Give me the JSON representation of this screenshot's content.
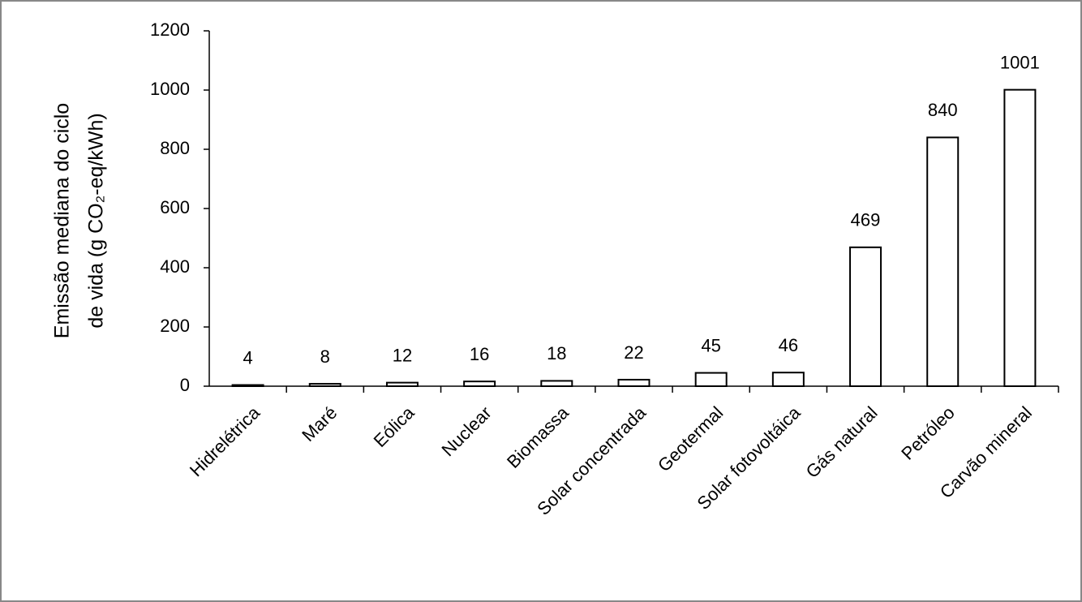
{
  "chart_data": {
    "type": "bar",
    "ylabel": [
      "Emissão mediana do ciclo",
      "de vida  (g CO₂-eq/kWh)"
    ],
    "categories": [
      "Hidrelétrica",
      "Maré",
      "Eólica",
      "Nuclear",
      "Biomassa",
      "Solar concentrada",
      "Geotermal",
      "Solar fotovoltáica",
      "Gás natural",
      "Petróleo",
      "Carvão mineral"
    ],
    "values": [
      4,
      8,
      12,
      16,
      18,
      22,
      45,
      46,
      469,
      840,
      1001
    ],
    "color": "#ffffff",
    "ylim": [
      0,
      1200
    ],
    "yticks": [
      0,
      200,
      400,
      600,
      800,
      1000,
      1200
    ],
    "grid": false
  }
}
